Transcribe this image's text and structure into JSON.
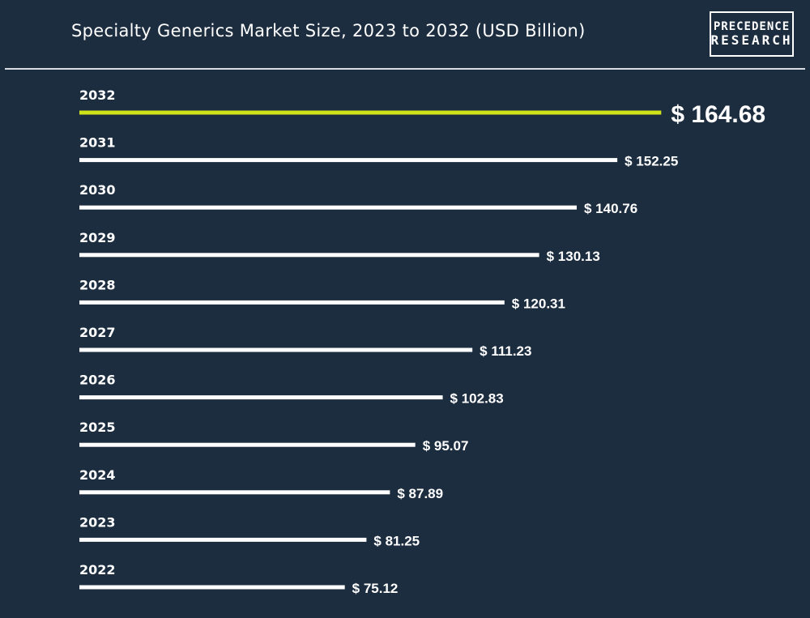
{
  "header": {
    "title": "Specialty Generics Market Size, 2023 to 2032 (USD Billion)",
    "logo_line1": "PRECEDENCE",
    "logo_line2": "RESEARCH"
  },
  "colors": {
    "background": "#1c2d40",
    "bar_default": "#ffffff",
    "bar_highlight": "#cfe21a",
    "text": "#ffffff"
  },
  "chart_data": {
    "type": "bar",
    "orientation": "horizontal",
    "title": "Specialty Generics Market Size, 2023 to 2032 (USD Billion)",
    "categories": [
      "2032",
      "2031",
      "2030",
      "2029",
      "2028",
      "2027",
      "2026",
      "2025",
      "2024",
      "2023",
      "2022"
    ],
    "values": [
      164.68,
      152.25,
      140.76,
      130.13,
      120.31,
      111.23,
      102.83,
      95.07,
      87.89,
      81.25,
      75.12
    ],
    "value_labels": [
      "$ 164.68",
      "$ 152.25",
      "$ 140.76",
      "$ 130.13",
      "$ 120.31",
      "$ 111.23",
      "$ 102.83",
      "$ 95.07",
      "$ 87.89",
      "$ 81.25",
      "$ 75.12"
    ],
    "highlight_category": "2032",
    "grid": false,
    "legend": "none"
  }
}
